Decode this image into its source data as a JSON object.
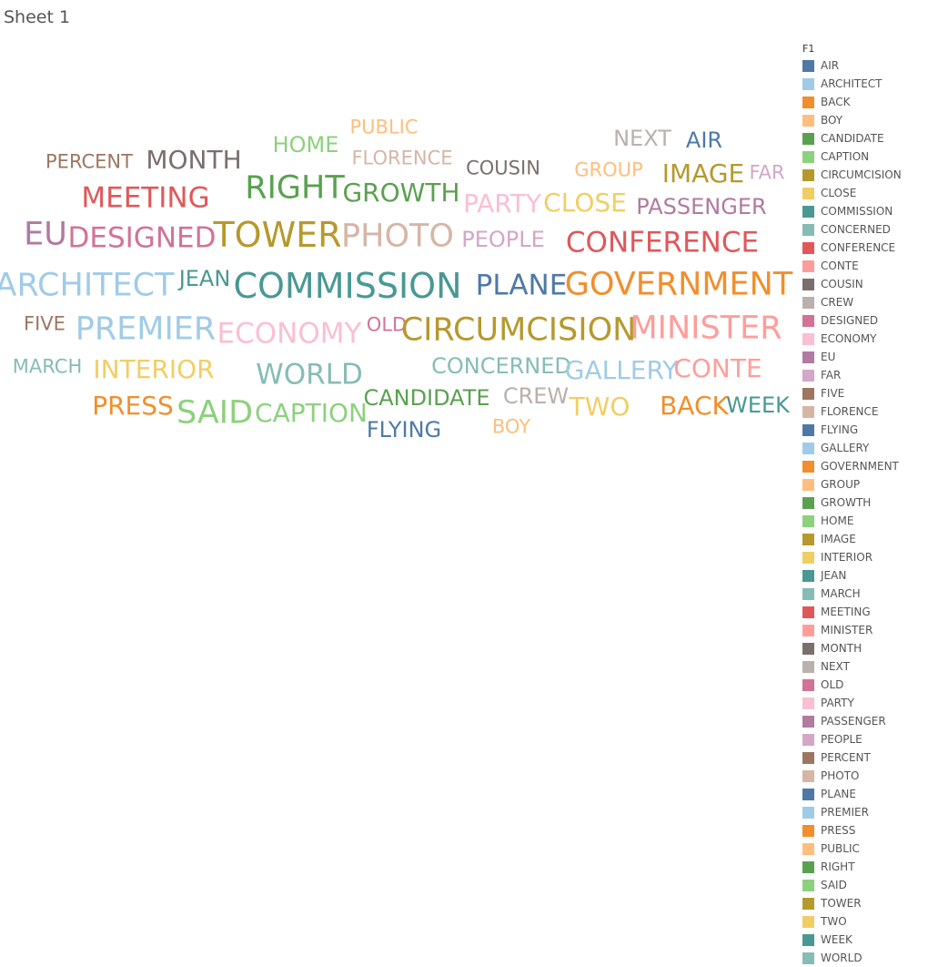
{
  "sheet": {
    "title": "Sheet 1"
  },
  "chart_data": {
    "type": "word-cloud",
    "legend": {
      "title": "F1",
      "placement": "right",
      "entries": [
        {
          "label": "AIR",
          "color": "#4e79a7"
        },
        {
          "label": "ARCHITECT",
          "color": "#a0cbe8"
        },
        {
          "label": "BACK",
          "color": "#f28e2b"
        },
        {
          "label": "BOY",
          "color": "#ffbe7d"
        },
        {
          "label": "CANDIDATE",
          "color": "#59a14f"
        },
        {
          "label": "CAPTION",
          "color": "#8cd17d"
        },
        {
          "label": "CIRCUMCISION",
          "color": "#b6992d"
        },
        {
          "label": "CLOSE",
          "color": "#f1ce63"
        },
        {
          "label": "COMMISSION",
          "color": "#499894"
        },
        {
          "label": "CONCERNED",
          "color": "#86bcb6"
        },
        {
          "label": "CONFERENCE",
          "color": "#e15759"
        },
        {
          "label": "CONTE",
          "color": "#ff9d9a"
        },
        {
          "label": "COUSIN",
          "color": "#79706e"
        },
        {
          "label": "CREW",
          "color": "#bab0ac"
        },
        {
          "label": "DESIGNED",
          "color": "#d37295"
        },
        {
          "label": "ECONOMY",
          "color": "#fabfd2"
        },
        {
          "label": "EU",
          "color": "#b07aa1"
        },
        {
          "label": "FAR",
          "color": "#d4a6c8"
        },
        {
          "label": "FIVE",
          "color": "#9d7660"
        },
        {
          "label": "FLORENCE",
          "color": "#d7b5a6"
        },
        {
          "label": "FLYING",
          "color": "#4e79a7"
        },
        {
          "label": "GALLERY",
          "color": "#a0cbe8"
        },
        {
          "label": "GOVERNMENT",
          "color": "#f28e2b"
        },
        {
          "label": "GROUP",
          "color": "#ffbe7d"
        },
        {
          "label": "GROWTH",
          "color": "#59a14f"
        },
        {
          "label": "HOME",
          "color": "#8cd17d"
        },
        {
          "label": "IMAGE",
          "color": "#b6992d"
        },
        {
          "label": "INTERIOR",
          "color": "#f1ce63"
        },
        {
          "label": "JEAN",
          "color": "#499894"
        },
        {
          "label": "MARCH",
          "color": "#86bcb6"
        },
        {
          "label": "MEETING",
          "color": "#e15759"
        },
        {
          "label": "MINISTER",
          "color": "#ff9d9a"
        },
        {
          "label": "MONTH",
          "color": "#79706e"
        },
        {
          "label": "NEXT",
          "color": "#bab0ac"
        },
        {
          "label": "OLD",
          "color": "#d37295"
        },
        {
          "label": "PARTY",
          "color": "#fabfd2"
        },
        {
          "label": "PASSENGER",
          "color": "#b07aa1"
        },
        {
          "label": "PEOPLE",
          "color": "#d4a6c8"
        },
        {
          "label": "PERCENT",
          "color": "#9d7660"
        },
        {
          "label": "PHOTO",
          "color": "#d7b5a6"
        },
        {
          "label": "PLANE",
          "color": "#4e79a7"
        },
        {
          "label": "PREMIER",
          "color": "#a0cbe8"
        },
        {
          "label": "PRESS",
          "color": "#f28e2b"
        },
        {
          "label": "PUBLIC",
          "color": "#ffbe7d"
        },
        {
          "label": "RIGHT",
          "color": "#59a14f"
        },
        {
          "label": "SAID",
          "color": "#8cd17d"
        },
        {
          "label": "TOWER",
          "color": "#b6992d"
        },
        {
          "label": "TWO",
          "color": "#f1ce63"
        },
        {
          "label": "WEEK",
          "color": "#499894"
        },
        {
          "label": "WORLD",
          "color": "#86bcb6"
        }
      ]
    },
    "words": [
      {
        "text": "PUBLIC",
        "weight": 1
      },
      {
        "text": "HOME",
        "weight": 2
      },
      {
        "text": "NEXT",
        "weight": 2
      },
      {
        "text": "AIR",
        "weight": 2
      },
      {
        "text": "PERCENT",
        "weight": 1
      },
      {
        "text": "MONTH",
        "weight": 3
      },
      {
        "text": "FLORENCE",
        "weight": 1
      },
      {
        "text": "COUSIN",
        "weight": 1
      },
      {
        "text": "GROUP",
        "weight": 1
      },
      {
        "text": "IMAGE",
        "weight": 3
      },
      {
        "text": "FAR",
        "weight": 1
      },
      {
        "text": "RIGHT",
        "weight": 5
      },
      {
        "text": "MEETING",
        "weight": 4
      },
      {
        "text": "GROWTH",
        "weight": 3
      },
      {
        "text": "PARTY",
        "weight": 3
      },
      {
        "text": "CLOSE",
        "weight": 3
      },
      {
        "text": "PASSENGER",
        "weight": 2
      },
      {
        "text": "EU",
        "weight": 5
      },
      {
        "text": "DESIGNED",
        "weight": 4
      },
      {
        "text": "TOWER",
        "weight": 6
      },
      {
        "text": "PHOTO",
        "weight": 5
      },
      {
        "text": "PEOPLE",
        "weight": 2
      },
      {
        "text": "CONFERENCE",
        "weight": 4
      },
      {
        "text": "ARCHITECT",
        "weight": 5
      },
      {
        "text": "JEAN",
        "weight": 2
      },
      {
        "text": "COMMISSION",
        "weight": 6
      },
      {
        "text": "PLANE",
        "weight": 4
      },
      {
        "text": "GOVERNMENT",
        "weight": 5
      },
      {
        "text": "FIVE",
        "weight": 1
      },
      {
        "text": "PREMIER",
        "weight": 5
      },
      {
        "text": "ECONOMY",
        "weight": 4
      },
      {
        "text": "OLD",
        "weight": 1
      },
      {
        "text": "CIRCUMCISION",
        "weight": 5
      },
      {
        "text": "MINISTER",
        "weight": 5
      },
      {
        "text": "MARCH",
        "weight": 1
      },
      {
        "text": "INTERIOR",
        "weight": 3
      },
      {
        "text": "WORLD",
        "weight": 4
      },
      {
        "text": "CONCERNED",
        "weight": 2
      },
      {
        "text": "GALLERY",
        "weight": 3
      },
      {
        "text": "CONTE",
        "weight": 3
      },
      {
        "text": "PRESS",
        "weight": 3
      },
      {
        "text": "SAID",
        "weight": 5
      },
      {
        "text": "CAPTION",
        "weight": 3
      },
      {
        "text": "CANDIDATE",
        "weight": 2
      },
      {
        "text": "CREW",
        "weight": 2
      },
      {
        "text": "TWO",
        "weight": 3
      },
      {
        "text": "BACK",
        "weight": 3
      },
      {
        "text": "WEEK",
        "weight": 2
      },
      {
        "text": "FLYING",
        "weight": 2
      },
      {
        "text": "BOY",
        "weight": 1
      }
    ]
  }
}
